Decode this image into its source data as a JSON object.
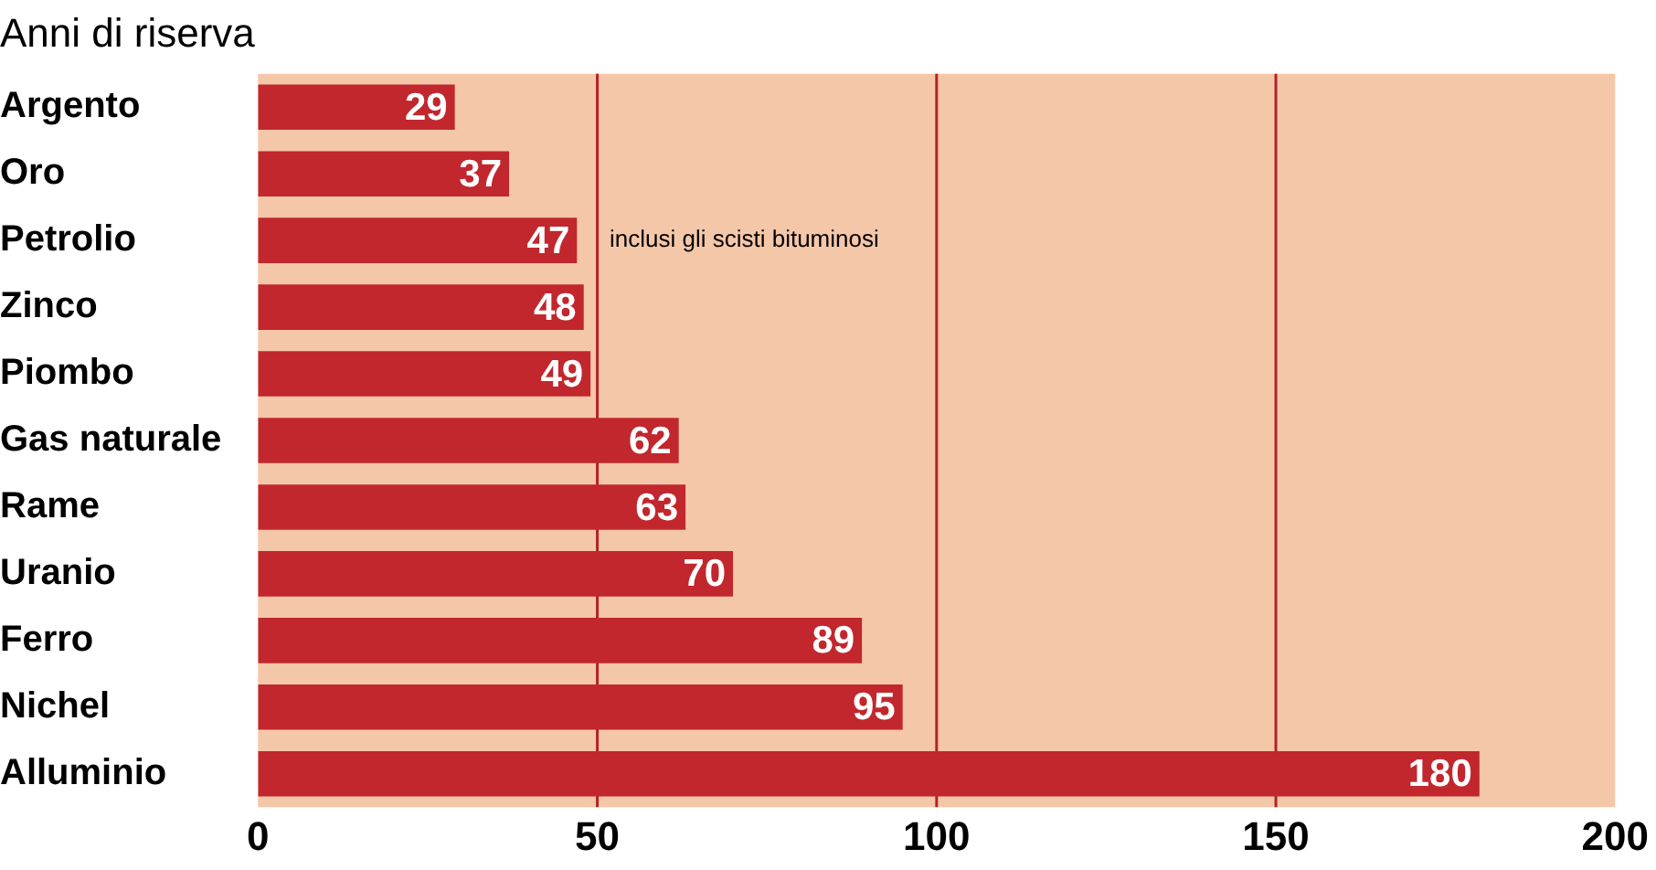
{
  "chart_data": {
    "type": "bar",
    "orientation": "horizontal",
    "title": "Anni di riserva",
    "categories": [
      "Argento",
      "Oro",
      "Petrolio",
      "Zinco",
      "Piombo",
      "Gas naturale",
      "Rame",
      "Uranio",
      "Ferro",
      "Nichel",
      "Alluminio"
    ],
    "values": [
      29,
      37,
      47,
      48,
      49,
      62,
      63,
      70,
      89,
      95,
      180
    ],
    "color": "#c1272d",
    "xlim": [
      0,
      200
    ],
    "xticks": [
      0,
      50,
      100,
      150,
      200
    ],
    "ref_lines": [
      {
        "axis": "x",
        "value": 50,
        "color": "#b5202a"
      },
      {
        "axis": "x",
        "value": 100,
        "color": "#b5202a"
      },
      {
        "axis": "x",
        "value": 150,
        "color": "#b5202a"
      }
    ],
    "annotations": [
      {
        "text": "inclusi gli scisti bituminosi",
        "x": 51,
        "y": "Petrolio"
      }
    ],
    "data_labels": true,
    "grid": false,
    "legend": false
  }
}
